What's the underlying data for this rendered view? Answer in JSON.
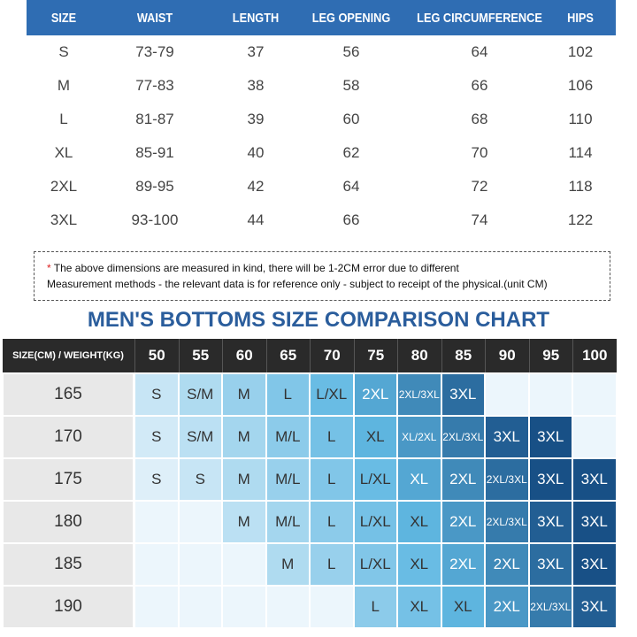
{
  "size_table": {
    "header": [
      "SIZE",
      "WAIST",
      "LENGTH",
      "LEG OPENING",
      "LEG CIRCUMFERENCE",
      "HIPS"
    ],
    "rows": [
      [
        "S",
        "73-79",
        37,
        56,
        64,
        102
      ],
      [
        "M",
        "77-83",
        38,
        58,
        66,
        106
      ],
      [
        "L",
        "81-87",
        39,
        60,
        68,
        110
      ],
      [
        "XL",
        "85-91",
        40,
        62,
        70,
        114
      ],
      [
        "2XL",
        "89-95",
        42,
        64,
        72,
        118
      ],
      [
        "3XL",
        "93-100",
        44,
        66,
        74,
        122
      ]
    ]
  },
  "note": {
    "marker": "*",
    "line1": "The above dimensions are measured in kind, there will be 1-2CM error due to different",
    "line2": "Measurement methods - the relevant data is for reference only - subject to receipt of the physical.(unit CM)"
  },
  "comparison": {
    "title": "MEN'S BOTTOMS SIZE COMPARISON CHART",
    "corner": "SIZE(CM) / WEIGHT(KG)",
    "weights": [
      50,
      55,
      60,
      65,
      70,
      75,
      80,
      85,
      90,
      95,
      100
    ],
    "heights": [
      165,
      170,
      175,
      180,
      185,
      190
    ],
    "rows": [
      [
        "S",
        "S/M",
        "M",
        "L",
        "L/XL",
        "2XL",
        "2XL/3XL",
        "3XL",
        null,
        null,
        null
      ],
      [
        "S",
        "S/M",
        "M",
        "M/L",
        "L",
        "XL",
        "XL/2XL",
        "2XL/3XL",
        "3XL",
        "3XL",
        null
      ],
      [
        "S",
        "S",
        "M",
        "M/L",
        "L",
        "L/XL",
        "XL",
        "2XL",
        "2XL/3XL",
        "3XL",
        "3XL"
      ],
      [
        null,
        null,
        "M",
        "M/L",
        "L",
        "L/XL",
        "XL",
        "2XL",
        "2XL/3XL",
        "3XL",
        "3XL"
      ],
      [
        null,
        null,
        null,
        "M",
        "L",
        "L/XL",
        "XL",
        "2XL",
        "2XL",
        "3XL",
        "3XL"
      ],
      [
        null,
        null,
        null,
        null,
        null,
        "L",
        "XL",
        "XL",
        "2XL",
        "2XL/3XL",
        "3XL"
      ]
    ]
  }
}
